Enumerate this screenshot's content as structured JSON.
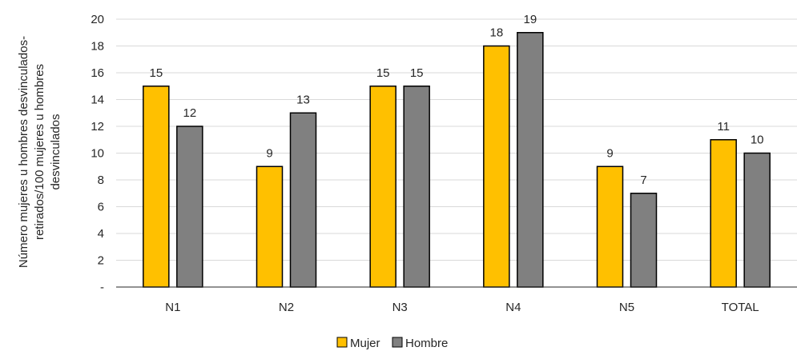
{
  "chart_data": {
    "type": "bar",
    "title": "",
    "xlabel": "",
    "ylabel_lines": [
      "Número mujeres u hombres desvinculados-",
      "retirados/100 mujeres u hombres",
      "desvinculados"
    ],
    "categories": [
      "N1",
      "N2",
      "N3",
      "N4",
      "N5",
      "TOTAL"
    ],
    "series": [
      {
        "name": "Mujer",
        "color": "#FFC000",
        "values": [
          15,
          9,
          15,
          18,
          9,
          11
        ]
      },
      {
        "name": "Hombre",
        "color": "#808080",
        "values": [
          12,
          13,
          15,
          19,
          7,
          10
        ]
      }
    ],
    "ylim": [
      0,
      20
    ],
    "yticks": [
      {
        "value": 0,
        "label": "-"
      },
      {
        "value": 2,
        "label": "2"
      },
      {
        "value": 4,
        "label": "4"
      },
      {
        "value": 6,
        "label": "6"
      },
      {
        "value": 8,
        "label": "8"
      },
      {
        "value": 10,
        "label": "10"
      },
      {
        "value": 12,
        "label": "12"
      },
      {
        "value": 14,
        "label": "14"
      },
      {
        "value": 16,
        "label": "16"
      },
      {
        "value": 18,
        "label": "18"
      },
      {
        "value": 20,
        "label": "20"
      }
    ],
    "grid": true,
    "legend_position": "bottom"
  }
}
